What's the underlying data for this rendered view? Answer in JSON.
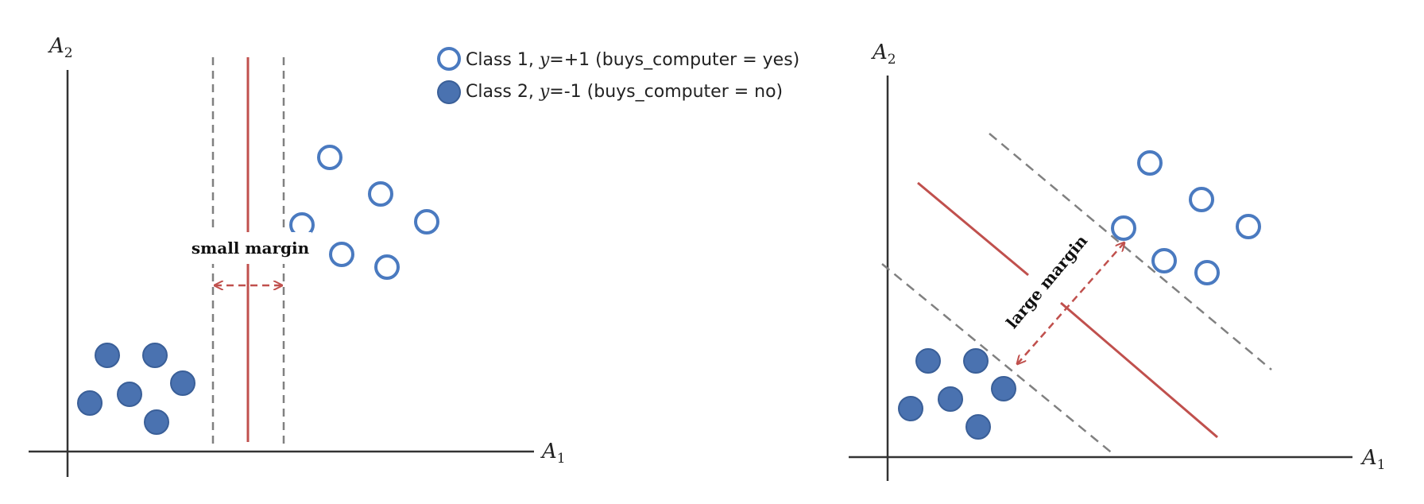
{
  "colors": {
    "open_point": "#4a7ac0",
    "filled_point": "#4a72b0",
    "filled_point_stroke": "#3a5f98",
    "hyperplane": "#c0504d",
    "margin_line": "#808080",
    "axis": "#333333"
  },
  "left_panel": {
    "x_axis_label": {
      "letter": "A",
      "subscript": "1"
    },
    "y_axis_label": {
      "letter": "A",
      "subscript": "2"
    },
    "margin_label": "small margin"
  },
  "right_panel": {
    "x_axis_label": {
      "letter": "A",
      "subscript": "1"
    },
    "y_axis_label": {
      "letter": "A",
      "subscript": "2"
    },
    "margin_label": "large margin"
  },
  "legend": {
    "items": [
      {
        "marker": "open-circle",
        "prefix": "Class 1, ",
        "y_symbol": "y",
        "suffix": "=+1 (buys_computer = yes)"
      },
      {
        "marker": "filled-circle",
        "prefix": "Class 2, ",
        "y_symbol": "y",
        "suffix": "=-1 (buys_computer = no)"
      }
    ]
  }
}
